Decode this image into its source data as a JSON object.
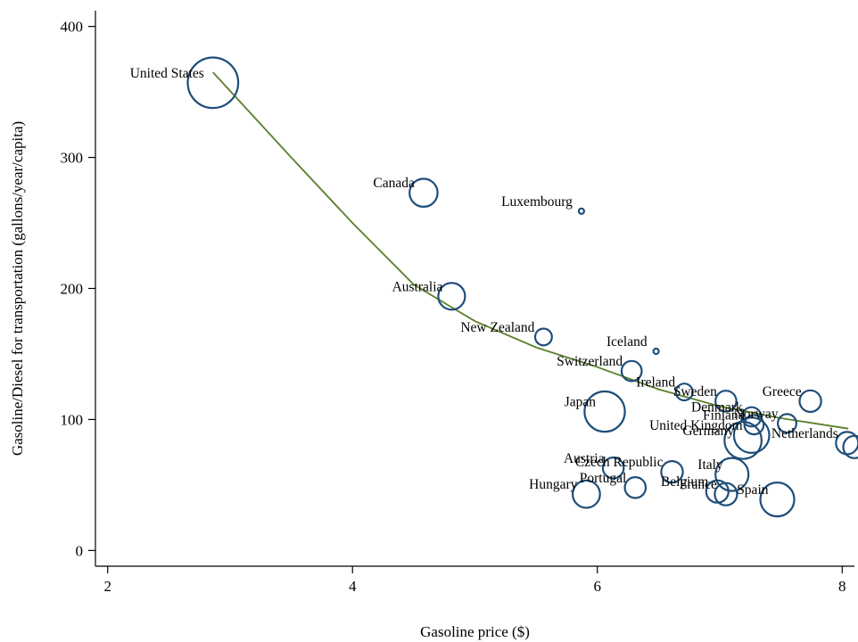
{
  "chart_data": {
    "type": "scatter",
    "title": "",
    "xlabel": "Gasoline price ($)",
    "ylabel": "Gasoline/Diesel for transportation (gallons/year/capita)",
    "xlim": [
      1.9,
      8.1
    ],
    "ylim": [
      -12,
      412
    ],
    "xticks": [
      2,
      4,
      6,
      8
    ],
    "yticks": [
      0,
      100,
      200,
      300,
      400
    ],
    "grid": false,
    "bubble_color": "#1f4e79",
    "trend_color": "#5a7f2a",
    "points": [
      {
        "label": "United States",
        "x": 2.86,
        "y": 357,
        "size": 4.1
      },
      {
        "label": "Canada",
        "x": 4.58,
        "y": 273,
        "size": 1.25
      },
      {
        "label": "Luxembourg",
        "x": 5.87,
        "y": 259,
        "size": 0.12
      },
      {
        "label": "Australia",
        "x": 4.81,
        "y": 194,
        "size": 1.15
      },
      {
        "label": "New Zealand",
        "x": 5.56,
        "y": 163,
        "size": 0.45
      },
      {
        "label": "Iceland",
        "x": 6.48,
        "y": 152,
        "size": 0.1
      },
      {
        "label": "Switzerland",
        "x": 6.28,
        "y": 137,
        "size": 0.65
      },
      {
        "label": "Ireland",
        "x": 6.71,
        "y": 121,
        "size": 0.45
      },
      {
        "label": "Sweden",
        "x": 7.05,
        "y": 114,
        "size": 0.7
      },
      {
        "label": "Greece",
        "x": 7.74,
        "y": 114,
        "size": 0.75
      },
      {
        "label": "Japan",
        "x": 6.06,
        "y": 106,
        "size": 2.6
      },
      {
        "label": "Denmark",
        "x": 7.26,
        "y": 102,
        "size": 0.6
      },
      {
        "label": "Finland",
        "x": 7.28,
        "y": 96,
        "size": 0.6
      },
      {
        "label": "Norway",
        "x": 7.55,
        "y": 97,
        "size": 0.55
      },
      {
        "label": "United Kingdom",
        "x": 7.26,
        "y": 88,
        "size": 2.0
      },
      {
        "label": "Germany",
        "x": 7.19,
        "y": 84,
        "size": 2.2
      },
      {
        "label": "Netherlands",
        "x": 8.04,
        "y": 82,
        "size": 0.8
      },
      {
        "label": "Austria",
        "x": 6.13,
        "y": 63,
        "size": 0.7
      },
      {
        "label": "Czech Republic",
        "x": 6.61,
        "y": 60,
        "size": 0.75
      },
      {
        "label": "Italy",
        "x": 7.1,
        "y": 58,
        "size": 1.75
      },
      {
        "label": "Portugal",
        "x": 6.31,
        "y": 48,
        "size": 0.7
      },
      {
        "label": "Belgium",
        "x": 6.98,
        "y": 45,
        "size": 0.8
      },
      {
        "label": "France",
        "x": 7.05,
        "y": 43,
        "size": 0.8
      },
      {
        "label": "Hungary",
        "x": 5.91,
        "y": 43,
        "size": 1.2
      },
      {
        "label": "Spain",
        "x": 7.47,
        "y": 39,
        "size": 1.85
      },
      {
        "label": "",
        "x": 8.1,
        "y": 79,
        "size": 0.8
      }
    ],
    "trend_line": {
      "x": [
        2.86,
        3.5,
        4.0,
        4.5,
        5.0,
        5.5,
        6.0,
        6.5,
        7.0,
        7.5,
        8.05
      ],
      "y": [
        365,
        300,
        250,
        203,
        175,
        155,
        140,
        123,
        110,
        101,
        93
      ]
    }
  }
}
